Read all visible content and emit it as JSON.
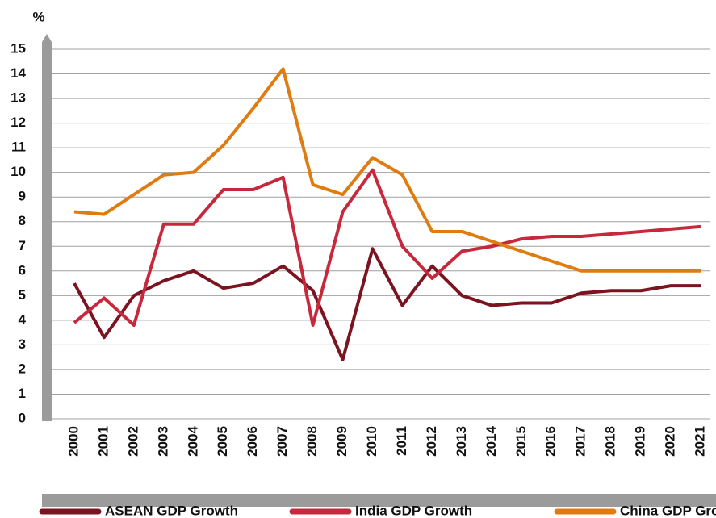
{
  "chart_data": {
    "type": "line",
    "ylabel": "%",
    "categories": [
      "2000",
      "2001",
      "2002",
      "2003",
      "2004",
      "2005",
      "2006",
      "2007",
      "2008",
      "2009",
      "2010",
      "2011",
      "2012",
      "2013",
      "2014",
      "2015",
      "2016",
      "2017",
      "2018",
      "2019",
      "2020",
      "2021"
    ],
    "series": [
      {
        "name": "ASEAN GDP Growth",
        "color": "#7b1420",
        "values": [
          5.5,
          3.3,
          5.0,
          5.6,
          6.0,
          5.3,
          5.5,
          6.2,
          5.2,
          2.4,
          6.9,
          4.6,
          6.2,
          5.0,
          4.6,
          4.7,
          4.7,
          5.1,
          5.2,
          5.2,
          5.4,
          5.4
        ]
      },
      {
        "name": "India GDP Growth",
        "color": "#c8283c",
        "values": [
          3.9,
          4.9,
          3.8,
          7.9,
          7.9,
          9.3,
          9.3,
          9.8,
          3.8,
          8.4,
          10.1,
          7.0,
          5.7,
          6.8,
          7.0,
          7.3,
          7.4,
          7.4,
          7.5,
          7.6,
          7.7,
          7.8
        ]
      },
      {
        "name": "China GDP Growth",
        "color": "#e07b10",
        "values": [
          8.4,
          8.3,
          9.1,
          9.9,
          10.0,
          11.1,
          12.6,
          14.2,
          9.5,
          9.1,
          10.6,
          9.9,
          7.6,
          7.6,
          7.2,
          6.8,
          6.4,
          6.0,
          6.0,
          6.0,
          6.0,
          6.0
        ]
      }
    ],
    "ylim": [
      0,
      15
    ],
    "yticks": [
      0,
      1,
      2,
      3,
      4,
      5,
      6,
      7,
      8,
      9,
      10,
      11,
      12,
      13,
      14,
      15
    ],
    "grid": true,
    "legend": "bottom"
  }
}
